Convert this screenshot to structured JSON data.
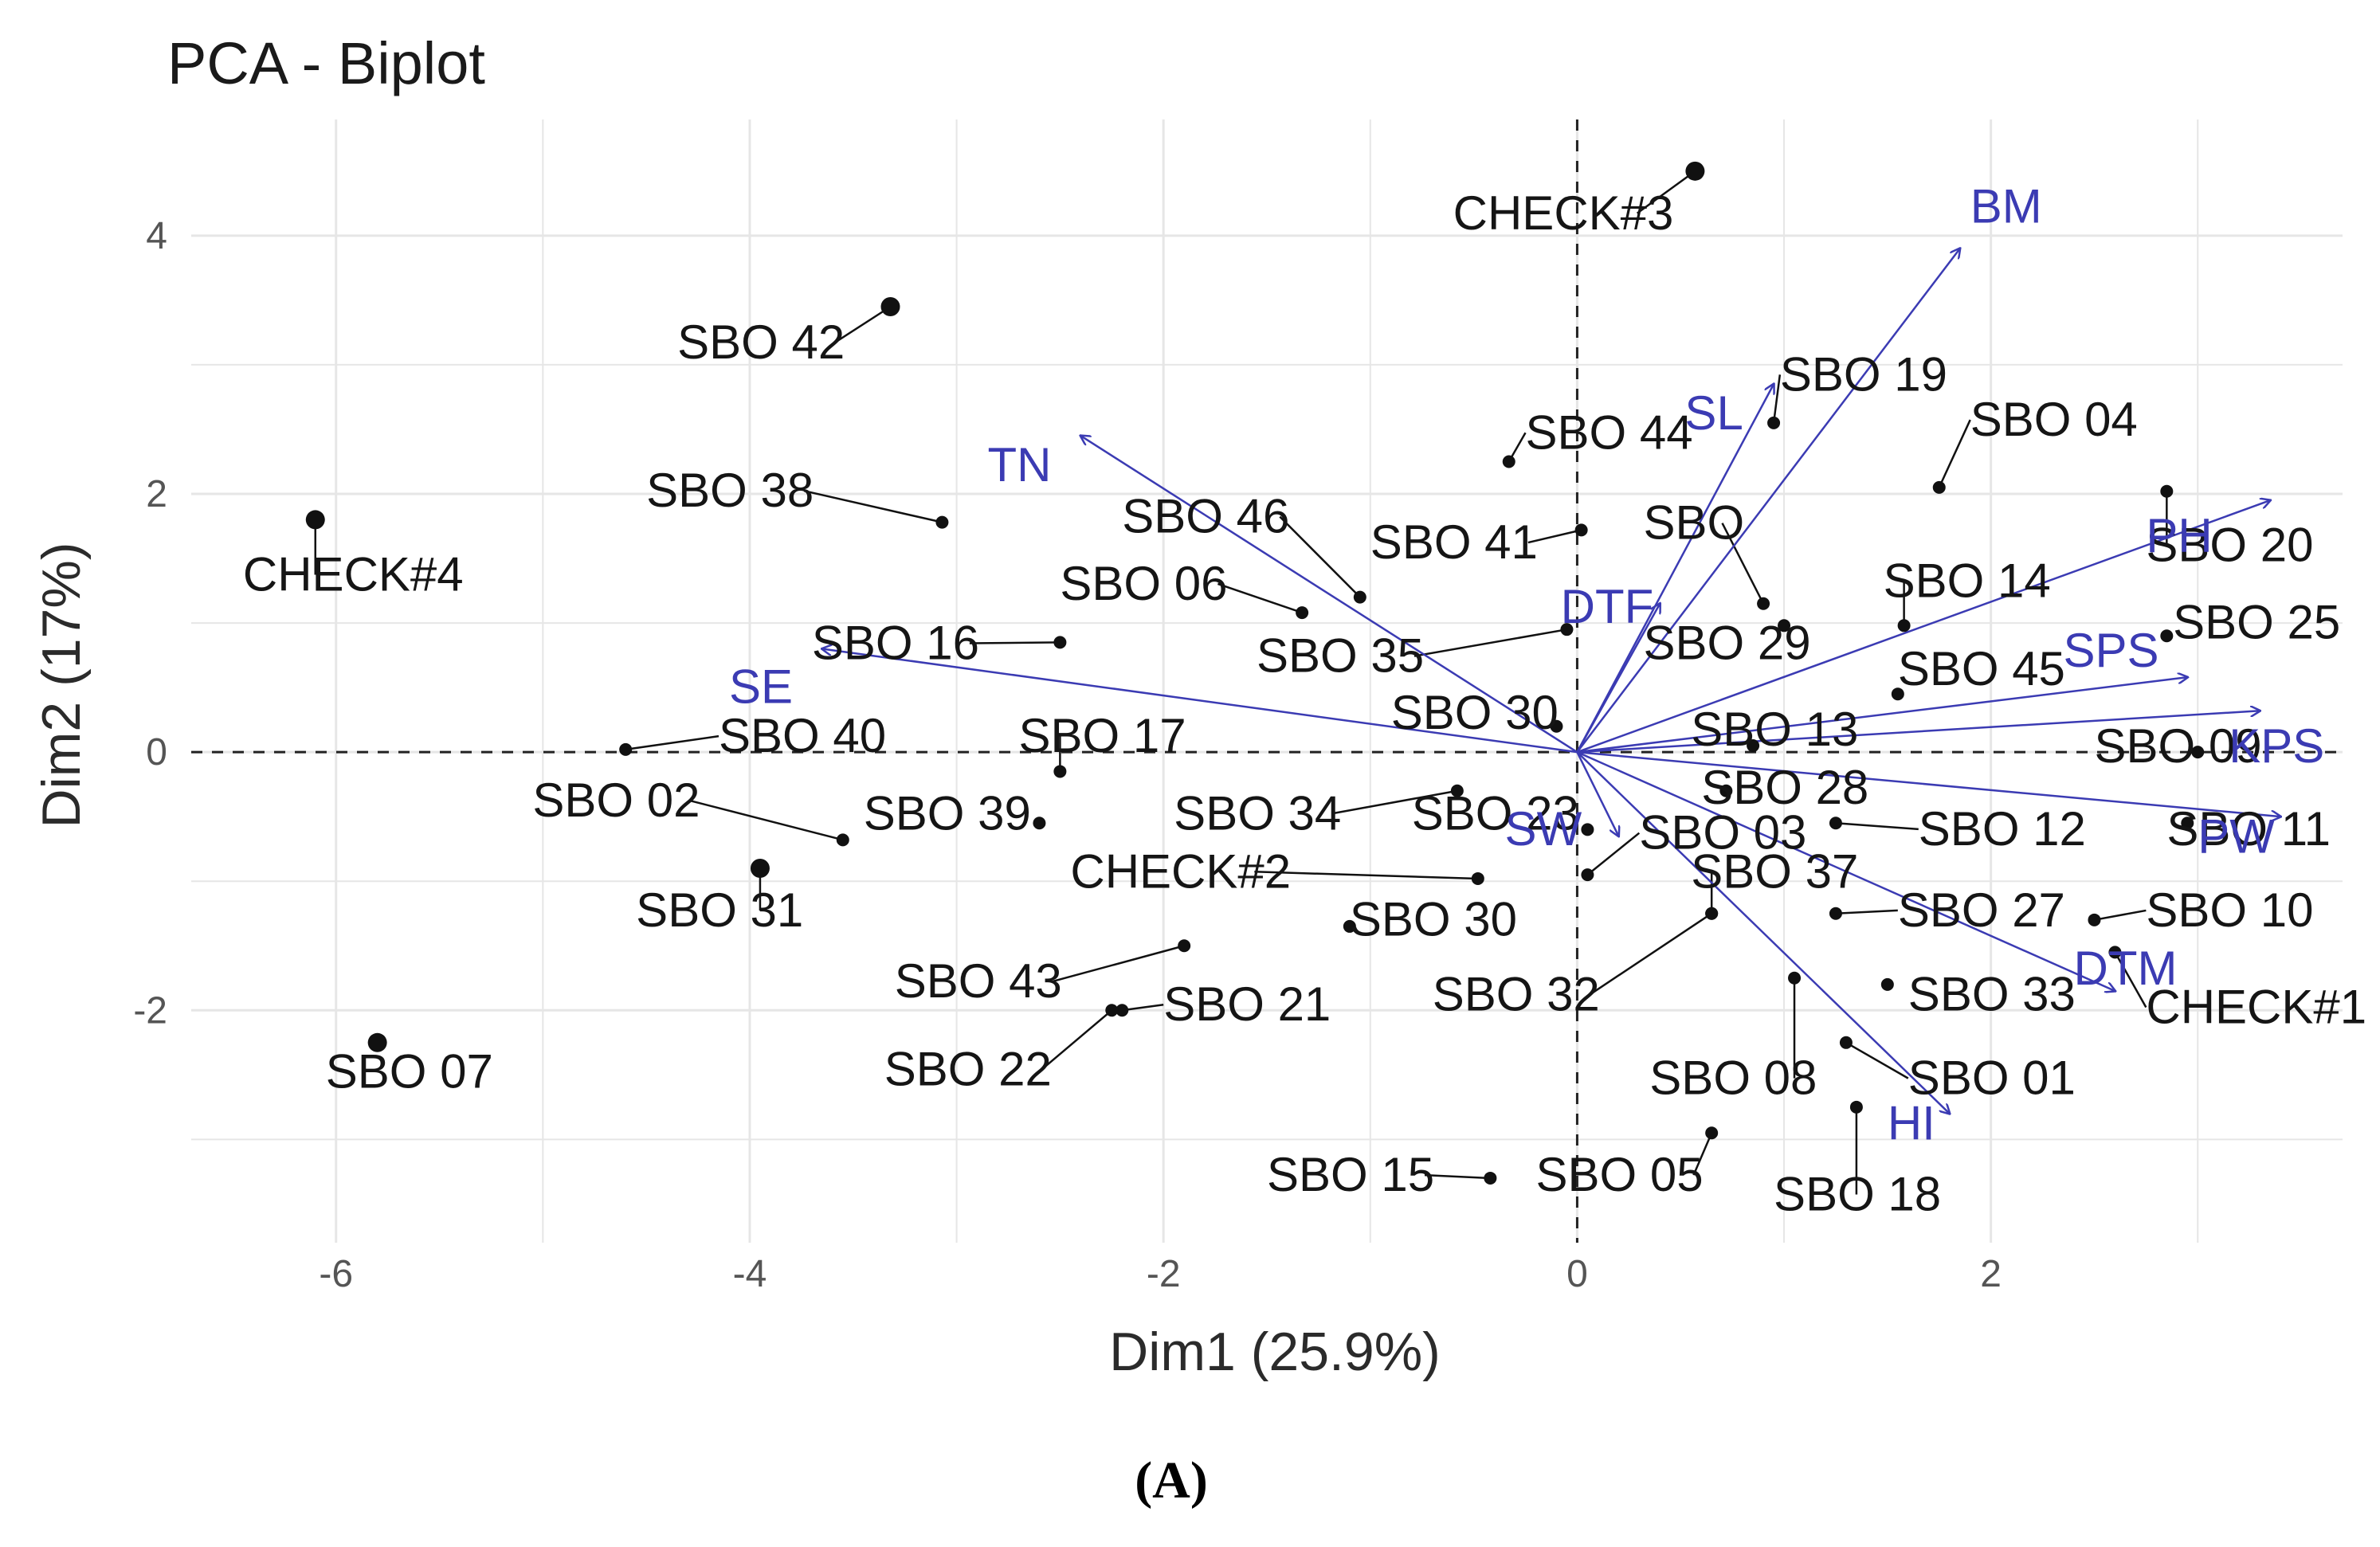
{
  "page": {
    "panel_label": "(A)"
  },
  "chart_data": {
    "type": "scatter",
    "subtype": "pca-biplot",
    "title": "PCA - Biplot",
    "xlabel": "Dim1 (25.9%)",
    "ylabel": "Dim2 (17%)",
    "xlim": [
      -6.7,
      3.7
    ],
    "ylim": [
      -3.8,
      4.9
    ],
    "x_ticks": [
      -6,
      -4,
      -2,
      0,
      2
    ],
    "y_ticks": [
      -2,
      0,
      2,
      4
    ],
    "x_tick_labels": [
      "-6",
      "-4",
      "-2",
      "0",
      "2"
    ],
    "y_tick_labels": [
      "-2",
      "0",
      "2",
      "4"
    ],
    "grid": true,
    "reference_lines": {
      "x": 0,
      "y": 0,
      "style": "dashed"
    },
    "colors": {
      "points": "#111111",
      "arrows": "#3b3bb3",
      "grid": "#e6e6e6"
    },
    "points": [
      {
        "label": "CHECK#3",
        "x": 0.57,
        "y": 4.5,
        "lx": -0.6,
        "ly": 4.05
      },
      {
        "label": "SBO 42",
        "x": -3.32,
        "y": 3.45,
        "lx": -4.35,
        "ly": 3.05
      },
      {
        "label": "SBO 19",
        "x": 0.95,
        "y": 2.55,
        "lx": 0.98,
        "ly": 2.8
      },
      {
        "label": "SBO 04",
        "x": 1.75,
        "y": 2.05,
        "lx": 1.9,
        "ly": 2.45
      },
      {
        "label": "SBO 44",
        "x": -0.33,
        "y": 2.25,
        "lx": -0.25,
        "ly": 2.35
      },
      {
        "label": "SBO 38",
        "x": -3.07,
        "y": 1.78,
        "lx": -4.5,
        "ly": 1.9
      },
      {
        "label": "TN_anchor_hidden",
        "x": -3.07,
        "y": 1.78,
        "hidden": true
      },
      {
        "label": "CHECK#4",
        "x": -6.1,
        "y": 1.8,
        "lx": -6.45,
        "ly": 1.25
      },
      {
        "label": "SBO 46",
        "x": -1.05,
        "y": 1.2,
        "lx": -2.2,
        "ly": 1.7
      },
      {
        "label": "SBO 41",
        "x": 0.02,
        "y": 1.72,
        "lx": -1.0,
        "ly": 1.5
      },
      {
        "label": "SBO",
        "x": 0.9,
        "y": 1.15,
        "lx": 0.32,
        "ly": 1.65
      },
      {
        "label": "SBO 20",
        "x": 2.85,
        "y": 2.02,
        "lx": 2.75,
        "ly": 1.48
      },
      {
        "label": "SBO 06",
        "x": -1.33,
        "y": 1.08,
        "lx": -2.5,
        "ly": 1.18
      },
      {
        "label": "SBO 14",
        "x": 1.58,
        "y": 0.98,
        "lx": 1.48,
        "ly": 1.2
      },
      {
        "label": "SBO 16",
        "x": -2.5,
        "y": 0.85,
        "lx": -3.7,
        "ly": 0.72
      },
      {
        "label": "SBO 25",
        "x": 2.85,
        "y": 0.9,
        "lx": 2.88,
        "ly": 0.88
      },
      {
        "label": "SBO 35",
        "x": -0.05,
        "y": 0.95,
        "lx": -1.55,
        "ly": 0.62
      },
      {
        "label": "SBO 29",
        "x": 1.0,
        "y": 0.98,
        "lx": 0.32,
        "ly": 0.72
      },
      {
        "label": "SBO 45",
        "x": 1.55,
        "y": 0.45,
        "lx": 1.55,
        "ly": 0.52
      },
      {
        "label": "SBO 30b",
        "display": "SBO 30",
        "x": -0.1,
        "y": 0.2,
        "lx": -0.9,
        "ly": 0.18
      },
      {
        "label": "SBO 40",
        "x": -4.6,
        "y": 0.02,
        "lx": -4.15,
        "ly": 0.0
      },
      {
        "label": "SBO 17",
        "x": -2.5,
        "y": -0.15,
        "lx": -2.7,
        "ly": 0.0
      },
      {
        "label": "SBO 13",
        "x": 0.85,
        "y": 0.05,
        "lx": 0.55,
        "ly": 0.05
      },
      {
        "label": "SBO 09",
        "x": 3.0,
        "y": 0.0,
        "lx": 2.5,
        "ly": -0.08
      },
      {
        "label": "SBO 02",
        "x": -3.55,
        "y": -0.68,
        "lx": -5.05,
        "ly": -0.5
      },
      {
        "label": "SBO 39",
        "x": -2.6,
        "y": -0.55,
        "lx": -3.45,
        "ly": -0.6
      },
      {
        "label": "SBO 34",
        "x": -0.58,
        "y": -0.3,
        "lx": -1.95,
        "ly": -0.6
      },
      {
        "label": "SBO 28",
        "x": 0.72,
        "y": -0.3,
        "lx": 0.6,
        "ly": -0.4
      },
      {
        "label": "SBO 23",
        "x": 0.05,
        "y": -0.6,
        "lx": -0.8,
        "ly": -0.6
      },
      {
        "label": "SBO 12",
        "x": 1.25,
        "y": -0.55,
        "lx": 1.65,
        "ly": -0.72
      },
      {
        "label": "SBO 11",
        "x": 2.95,
        "y": -0.55,
        "lx": 2.85,
        "ly": -0.72
      },
      {
        "label": "SBO 03",
        "x": 0.05,
        "y": -0.95,
        "lx": 0.3,
        "ly": -0.75
      },
      {
        "label": "CHECK#2",
        "x": -0.48,
        "y": -0.98,
        "lx": -2.45,
        "ly": -1.05
      },
      {
        "label": "SBO 31",
        "x": -3.95,
        "y": -0.9,
        "lx": -4.55,
        "ly": -1.35
      },
      {
        "label": "SBO 37",
        "x": 0.65,
        "y": -1.25,
        "lx": 0.55,
        "ly": -1.05
      },
      {
        "label": "SBO 27",
        "x": 1.25,
        "y": -1.25,
        "lx": 1.55,
        "ly": -1.35
      },
      {
        "label": "SBO 10",
        "x": 2.5,
        "y": -1.3,
        "lx": 2.75,
        "ly": -1.35
      },
      {
        "label": "SBO 30",
        "x": -1.1,
        "y": -1.35,
        "lx": -1.1,
        "ly": -1.42
      },
      {
        "label": "SBO 43",
        "x": -1.9,
        "y": -1.5,
        "lx": -3.3,
        "ly": -1.9
      },
      {
        "label": "SBO 21",
        "x": -2.2,
        "y": -2.0,
        "lx": -2.0,
        "ly": -2.08
      },
      {
        "label": "SBO 32",
        "x": 0.65,
        "y": -1.25,
        "lx": -0.7,
        "ly": -2.0
      },
      {
        "label": "SBO 33",
        "x": 1.5,
        "y": -1.8,
        "lx": 1.6,
        "ly": -2.0
      },
      {
        "label": "CHECK#1",
        "x": 2.6,
        "y": -1.55,
        "lx": 2.75,
        "ly": -2.1
      },
      {
        "label": "SBO 07",
        "x": -5.8,
        "y": -2.25,
        "lx": -6.05,
        "ly": -2.6
      },
      {
        "label": "SBO 22",
        "x": -2.25,
        "y": -2.0,
        "lx": -3.35,
        "ly": -2.58
      },
      {
        "label": "SBO 08",
        "x": 1.05,
        "y": -1.75,
        "lx": 0.35,
        "ly": -2.65
      },
      {
        "label": "SBO 01",
        "x": 1.3,
        "y": -2.25,
        "lx": 1.6,
        "ly": -2.65
      },
      {
        "label": "SBO 18",
        "x": 1.35,
        "y": -2.75,
        "lx": 0.95,
        "ly": -3.55
      },
      {
        "label": "SBO 15",
        "x": -0.42,
        "y": -3.3,
        "lx": -1.5,
        "ly": -3.4
      },
      {
        "label": "SBO 05",
        "x": 0.65,
        "y": -2.95,
        "lx": -0.2,
        "ly": -3.4
      }
    ],
    "variables": [
      {
        "label": "BM",
        "x": 1.85,
        "y": 3.9,
        "lx": 1.9,
        "ly": 4.1
      },
      {
        "label": "SL",
        "x": 0.95,
        "y": 2.85,
        "lx": 0.52,
        "ly": 2.5
      },
      {
        "label": "TN",
        "x": -2.4,
        "y": 2.45,
        "lx": -2.85,
        "ly": 2.1
      },
      {
        "label": "SE",
        "x": -3.65,
        "y": 0.8,
        "lx": -4.1,
        "ly": 0.38
      },
      {
        "label": "DTF",
        "x": 0.4,
        "y": 1.15,
        "lx": -0.08,
        "ly": 1.0
      },
      {
        "label": "PH",
        "x": 3.35,
        "y": 1.95,
        "lx": 2.75,
        "ly": 1.55
      },
      {
        "label": "SPS",
        "x": 2.95,
        "y": 0.58,
        "lx": 2.35,
        "ly": 0.66
      },
      {
        "label": "KPS",
        "x": 3.3,
        "y": 0.32,
        "lx": 3.15,
        "ly": -0.08
      },
      {
        "label": "PW",
        "x": 3.4,
        "y": -0.5,
        "lx": 3.0,
        "ly": -0.78
      },
      {
        "label": "SW",
        "x": 0.2,
        "y": -0.65,
        "lx": -0.35,
        "ly": -0.72
      },
      {
        "label": "DTM",
        "x": 2.6,
        "y": -1.85,
        "lx": 2.4,
        "ly": -1.8
      },
      {
        "label": "HI",
        "x": 1.8,
        "y": -2.8,
        "lx": 1.5,
        "ly": -3.0
      }
    ]
  }
}
